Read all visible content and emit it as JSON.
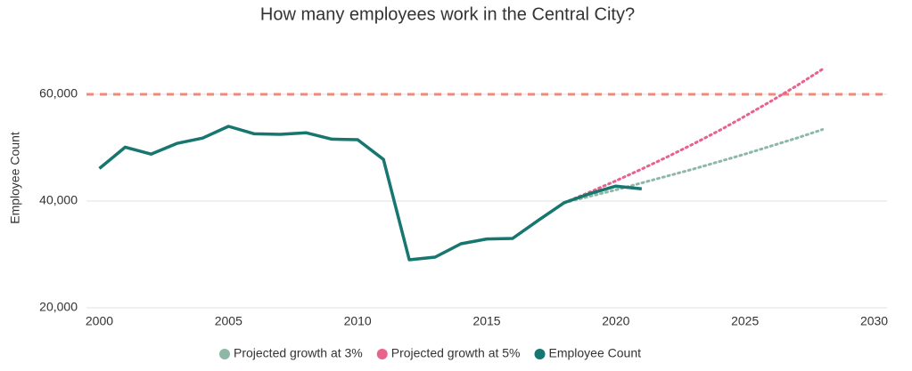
{
  "chart_data": {
    "type": "line",
    "title": "How many employees work in the Central City?",
    "y_label": "Employee Count",
    "xlim": [
      1999.5,
      2030.5
    ],
    "xticks": [
      2000,
      2005,
      2010,
      2015,
      2020,
      2025,
      2030
    ],
    "ylim": [
      20000,
      66000
    ],
    "yticks": [
      {
        "value": 20000,
        "label": "20,000"
      },
      {
        "value": 40000,
        "label": "40,000"
      },
      {
        "value": 60000,
        "label": "60,000"
      }
    ],
    "grid": true,
    "reference_line": {
      "value": 60000,
      "color": "#f08a78"
    },
    "series": [
      {
        "name": "Projected growth at 3%",
        "color": "#8db8a6",
        "dotted": true,
        "x": [
          2018,
          2019,
          2020,
          2021,
          2022,
          2023,
          2024,
          2025,
          2026,
          2027,
          2028
        ],
        "values": [
          39700,
          40900,
          42100,
          43400,
          44700,
          46000,
          47400,
          48800,
          50300,
          51800,
          53400
        ]
      },
      {
        "name": "Projected growth at 5%",
        "color": "#e8628c",
        "dotted": true,
        "x": [
          2018,
          2019,
          2020,
          2021,
          2022,
          2023,
          2024,
          2025,
          2026,
          2027,
          2028
        ],
        "values": [
          39700,
          41700,
          43800,
          46000,
          48300,
          50700,
          53200,
          55900,
          58700,
          61600,
          64700
        ]
      },
      {
        "name": "Employee Count",
        "color": "#17766f",
        "dotted": false,
        "x": [
          2000,
          2001,
          2002,
          2003,
          2004,
          2005,
          2006,
          2007,
          2008,
          2009,
          2010,
          2011,
          2012,
          2013,
          2014,
          2015,
          2016,
          2017,
          2018,
          2019,
          2020,
          2021
        ],
        "values": [
          46100,
          50100,
          48800,
          50800,
          51800,
          54000,
          52600,
          52500,
          52800,
          51600,
          51500,
          47800,
          29000,
          29500,
          32000,
          32900,
          33000,
          36400,
          39700,
          41400,
          42800,
          42300
        ]
      }
    ]
  }
}
